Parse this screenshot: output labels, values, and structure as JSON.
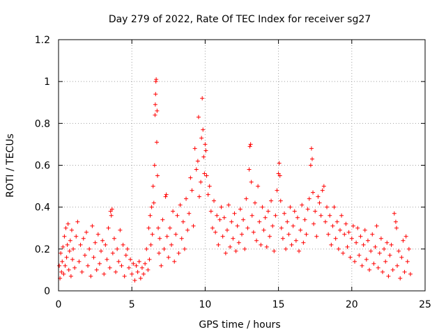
{
  "chart_data": {
    "type": "scatter",
    "title": "Day 279 of 2022, Rate Of TEC Index for receiver sg27",
    "xlabel": "GPS time / hours",
    "ylabel": "ROTI / TECUs",
    "xlim": [
      0,
      25
    ],
    "ylim": [
      0,
      1.2
    ],
    "x_ticks": [
      "0",
      "5",
      "10",
      "15",
      "20",
      "25"
    ],
    "x_tick_values": [
      0,
      5,
      10,
      15,
      20,
      25
    ],
    "y_ticks": [
      "0",
      "0.2",
      "0.4",
      "0.6",
      "0.8",
      "1",
      "1.2"
    ],
    "y_tick_values": [
      0,
      0.2,
      0.4,
      0.6,
      0.8,
      1.0,
      1.2
    ],
    "grid": true,
    "marker": "+",
    "color": "#ff0000",
    "series": [
      {
        "points": [
          [
            0.05,
            0.12
          ],
          [
            0.1,
            0.06
          ],
          [
            0.15,
            0.18
          ],
          [
            0.2,
            0.09
          ],
          [
            0.25,
            0.14
          ],
          [
            0.3,
            0.21
          ],
          [
            0.35,
            0.08
          ],
          [
            0.4,
            0.26
          ],
          [
            0.45,
            0.12
          ],
          [
            0.5,
            0.3
          ],
          [
            0.55,
            0.16
          ],
          [
            0.6,
            0.22
          ],
          [
            0.65,
            0.32
          ],
          [
            0.7,
            0.1
          ],
          [
            0.75,
            0.19
          ],
          [
            0.8,
            0.24
          ],
          [
            0.85,
            0.07
          ],
          [
            0.9,
            0.29
          ],
          [
            0.95,
            0.15
          ],
          [
            1.0,
            0.2
          ],
          [
            1.1,
            0.11
          ],
          [
            1.2,
            0.26
          ],
          [
            1.3,
            0.33
          ],
          [
            1.4,
            0.14
          ],
          [
            1.5,
            0.22
          ],
          [
            1.6,
            0.09
          ],
          [
            1.7,
            0.25
          ],
          [
            1.8,
            0.17
          ],
          [
            1.9,
            0.28
          ],
          [
            2.0,
            0.12
          ],
          [
            2.1,
            0.2
          ],
          [
            2.2,
            0.07
          ],
          [
            2.3,
            0.31
          ],
          [
            2.4,
            0.16
          ],
          [
            2.5,
            0.23
          ],
          [
            2.6,
            0.1
          ],
          [
            2.7,
            0.27
          ],
          [
            2.8,
            0.13
          ],
          [
            2.9,
            0.19
          ],
          [
            3.0,
            0.24
          ],
          [
            3.1,
            0.08
          ],
          [
            3.2,
            0.22
          ],
          [
            3.3,
            0.15
          ],
          [
            3.4,
            0.3
          ],
          [
            3.5,
            0.11
          ],
          [
            3.55,
            0.38
          ],
          [
            3.6,
            0.36
          ],
          [
            3.65,
            0.39
          ],
          [
            3.7,
            0.18
          ],
          [
            3.8,
            0.25
          ],
          [
            3.9,
            0.09
          ],
          [
            4.0,
            0.2
          ],
          [
            4.1,
            0.14
          ],
          [
            4.2,
            0.29
          ],
          [
            4.3,
            0.12
          ],
          [
            4.4,
            0.22
          ],
          [
            4.5,
            0.07
          ],
          [
            4.6,
            0.17
          ],
          [
            4.7,
            0.2
          ],
          [
            4.8,
            0.11
          ],
          [
            4.9,
            0.15
          ],
          [
            5.0,
            0.08
          ],
          [
            5.1,
            0.13
          ],
          [
            5.2,
            0.05
          ],
          [
            5.3,
            0.12
          ],
          [
            5.4,
            0.09
          ],
          [
            5.5,
            0.14
          ],
          [
            5.6,
            0.06
          ],
          [
            5.7,
            0.11
          ],
          [
            5.8,
            0.08
          ],
          [
            5.9,
            0.13
          ],
          [
            6.0,
            0.2
          ],
          [
            6.1,
            0.1
          ],
          [
            6.15,
            0.3
          ],
          [
            6.2,
            0.15
          ],
          [
            6.25,
            0.36
          ],
          [
            6.3,
            0.22
          ],
          [
            6.35,
            0.4
          ],
          [
            6.4,
            0.27
          ],
          [
            6.45,
            0.5
          ],
          [
            6.5,
            0.42
          ],
          [
            6.55,
            0.6
          ],
          [
            6.58,
            0.84
          ],
          [
            6.6,
            0.89
          ],
          [
            6.62,
            0.94
          ],
          [
            6.64,
            1.0
          ],
          [
            6.66,
            1.01
          ],
          [
            6.7,
            0.71
          ],
          [
            6.72,
            0.86
          ],
          [
            6.75,
            0.55
          ],
          [
            6.8,
            0.3
          ],
          [
            6.85,
            0.18
          ],
          [
            6.9,
            0.25
          ],
          [
            7.0,
            0.12
          ],
          [
            7.1,
            0.34
          ],
          [
            7.2,
            0.2
          ],
          [
            7.3,
            0.45
          ],
          [
            7.35,
            0.46
          ],
          [
            7.4,
            0.26
          ],
          [
            7.5,
            0.16
          ],
          [
            7.6,
            0.3
          ],
          [
            7.7,
            0.22
          ],
          [
            7.8,
            0.38
          ],
          [
            7.9,
            0.14
          ],
          [
            8.0,
            0.27
          ],
          [
            8.1,
            0.36
          ],
          [
            8.2,
            0.18
          ],
          [
            8.3,
            0.41
          ],
          [
            8.4,
            0.25
          ],
          [
            8.5,
            0.33
          ],
          [
            8.6,
            0.2
          ],
          [
            8.7,
            0.44
          ],
          [
            8.8,
            0.29
          ],
          [
            8.9,
            0.37
          ],
          [
            9.0,
            0.54
          ],
          [
            9.1,
            0.48
          ],
          [
            9.2,
            0.31
          ],
          [
            9.3,
            0.68
          ],
          [
            9.4,
            0.58
          ],
          [
            9.5,
            0.62
          ],
          [
            9.55,
            0.83
          ],
          [
            9.6,
            0.45
          ],
          [
            9.7,
            0.52
          ],
          [
            9.75,
            0.73
          ],
          [
            9.8,
            0.92
          ],
          [
            9.85,
            0.77
          ],
          [
            9.9,
            0.64
          ],
          [
            9.95,
            0.56
          ],
          [
            10.0,
            0.7
          ],
          [
            10.05,
            0.67
          ],
          [
            10.1,
            0.55
          ],
          [
            10.2,
            0.46
          ],
          [
            10.3,
            0.5
          ],
          [
            10.4,
            0.38
          ],
          [
            10.5,
            0.3
          ],
          [
            10.6,
            0.43
          ],
          [
            10.7,
            0.28
          ],
          [
            10.8,
            0.36
          ],
          [
            10.9,
            0.22
          ],
          [
            11.0,
            0.34
          ],
          [
            11.1,
            0.4
          ],
          [
            11.2,
            0.26
          ],
          [
            11.3,
            0.35
          ],
          [
            11.4,
            0.18
          ],
          [
            11.5,
            0.29
          ],
          [
            11.6,
            0.41
          ],
          [
            11.7,
            0.21
          ],
          [
            11.8,
            0.33
          ],
          [
            11.9,
            0.25
          ],
          [
            12.0,
            0.37
          ],
          [
            12.1,
            0.19
          ],
          [
            12.2,
            0.31
          ],
          [
            12.3,
            0.23
          ],
          [
            12.4,
            0.39
          ],
          [
            12.5,
            0.27
          ],
          [
            12.6,
            0.34
          ],
          [
            12.7,
            0.2
          ],
          [
            12.8,
            0.44
          ],
          [
            12.9,
            0.3
          ],
          [
            13.0,
            0.58
          ],
          [
            13.05,
            0.69
          ],
          [
            13.1,
            0.7
          ],
          [
            13.15,
            0.52
          ],
          [
            13.2,
            0.36
          ],
          [
            13.3,
            0.28
          ],
          [
            13.4,
            0.42
          ],
          [
            13.5,
            0.24
          ],
          [
            13.6,
            0.5
          ],
          [
            13.7,
            0.33
          ],
          [
            13.8,
            0.22
          ],
          [
            13.9,
            0.4
          ],
          [
            14.0,
            0.29
          ],
          [
            14.1,
            0.35
          ],
          [
            14.2,
            0.21
          ],
          [
            14.3,
            0.38
          ],
          [
            14.4,
            0.26
          ],
          [
            14.5,
            0.43
          ],
          [
            14.6,
            0.31
          ],
          [
            14.7,
            0.19
          ],
          [
            14.8,
            0.36
          ],
          [
            14.9,
            0.48
          ],
          [
            15.0,
            0.56
          ],
          [
            15.05,
            0.61
          ],
          [
            15.1,
            0.55
          ],
          [
            15.15,
            0.43
          ],
          [
            15.2,
            0.3
          ],
          [
            15.3,
            0.25
          ],
          [
            15.4,
            0.37
          ],
          [
            15.5,
            0.2
          ],
          [
            15.6,
            0.33
          ],
          [
            15.7,
            0.27
          ],
          [
            15.8,
            0.4
          ],
          [
            15.9,
            0.22
          ],
          [
            16.0,
            0.31
          ],
          [
            16.1,
            0.38
          ],
          [
            16.2,
            0.24
          ],
          [
            16.3,
            0.35
          ],
          [
            16.4,
            0.19
          ],
          [
            16.5,
            0.29
          ],
          [
            16.6,
            0.41
          ],
          [
            16.7,
            0.23
          ],
          [
            16.8,
            0.34
          ],
          [
            16.9,
            0.27
          ],
          [
            17.0,
            0.39
          ],
          [
            17.1,
            0.44
          ],
          [
            17.2,
            0.6
          ],
          [
            17.25,
            0.68
          ],
          [
            17.3,
            0.63
          ],
          [
            17.35,
            0.47
          ],
          [
            17.4,
            0.32
          ],
          [
            17.5,
            0.38
          ],
          [
            17.6,
            0.26
          ],
          [
            17.7,
            0.45
          ],
          [
            17.8,
            0.42
          ],
          [
            17.9,
            0.36
          ],
          [
            18.0,
            0.48
          ],
          [
            18.1,
            0.5
          ],
          [
            18.2,
            0.33
          ],
          [
            18.3,
            0.4
          ],
          [
            18.4,
            0.27
          ],
          [
            18.5,
            0.36
          ],
          [
            18.6,
            0.22
          ],
          [
            18.7,
            0.31
          ],
          [
            18.8,
            0.4
          ],
          [
            18.9,
            0.25
          ],
          [
            19.0,
            0.33
          ],
          [
            19.1,
            0.2
          ],
          [
            19.2,
            0.29
          ],
          [
            19.3,
            0.36
          ],
          [
            19.4,
            0.18
          ],
          [
            19.5,
            0.27
          ],
          [
            19.6,
            0.32
          ],
          [
            19.7,
            0.21
          ],
          [
            19.8,
            0.28
          ],
          [
            19.9,
            0.16
          ],
          [
            20.0,
            0.25
          ],
          [
            20.1,
            0.31
          ],
          [
            20.2,
            0.14
          ],
          [
            20.3,
            0.23
          ],
          [
            20.4,
            0.3
          ],
          [
            20.5,
            0.17
          ],
          [
            20.6,
            0.26
          ],
          [
            20.7,
            0.12
          ],
          [
            20.8,
            0.22
          ],
          [
            20.9,
            0.29
          ],
          [
            21.0,
            0.15
          ],
          [
            21.1,
            0.24
          ],
          [
            21.2,
            0.1
          ],
          [
            21.3,
            0.19
          ],
          [
            21.4,
            0.27
          ],
          [
            21.5,
            0.13
          ],
          [
            21.6,
            0.21
          ],
          [
            21.7,
            0.31
          ],
          [
            21.8,
            0.11
          ],
          [
            21.9,
            0.18
          ],
          [
            22.0,
            0.25
          ],
          [
            22.1,
            0.09
          ],
          [
            22.2,
            0.2
          ],
          [
            22.3,
            0.14
          ],
          [
            22.4,
            0.23
          ],
          [
            22.5,
            0.07
          ],
          [
            22.6,
            0.17
          ],
          [
            22.7,
            0.22
          ],
          [
            22.8,
            0.1
          ],
          [
            22.9,
            0.37
          ],
          [
            23.0,
            0.33
          ],
          [
            23.05,
            0.3
          ],
          [
            23.1,
            0.12
          ],
          [
            23.2,
            0.19
          ],
          [
            23.3,
            0.06
          ],
          [
            23.4,
            0.16
          ],
          [
            23.5,
            0.24
          ],
          [
            23.6,
            0.09
          ],
          [
            23.7,
            0.26
          ],
          [
            23.8,
            0.14
          ],
          [
            23.9,
            0.2
          ],
          [
            24.0,
            0.08
          ]
        ]
      }
    ]
  }
}
